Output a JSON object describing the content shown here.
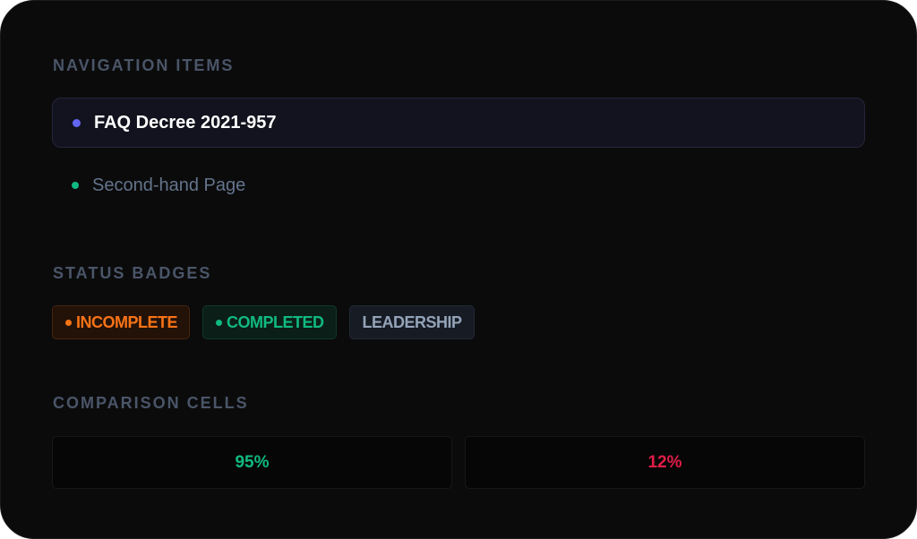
{
  "sections": {
    "navigation_title": "NAVIGATION ITEMS",
    "status_title": "STATUS BADGES",
    "comparison_title": "COMPARISON CELLS"
  },
  "nav_items": [
    {
      "label": "FAQ Decree 2021-957",
      "active": true,
      "dot_color": "#6366f1"
    },
    {
      "label": "Second-hand Page",
      "active": false,
      "dot_color": "#10b981"
    }
  ],
  "badges": [
    {
      "label": "INCOMPLETE",
      "color": "#f97316",
      "dot": true
    },
    {
      "label": "COMPLETED",
      "color": "#10b981",
      "dot": true
    },
    {
      "label": "LEADERSHIP",
      "color": "#94a3b8",
      "dot": false
    }
  ],
  "comparison": [
    {
      "value": "95%",
      "color": "#10b981"
    },
    {
      "value": "12%",
      "color": "#e11d48"
    }
  ]
}
